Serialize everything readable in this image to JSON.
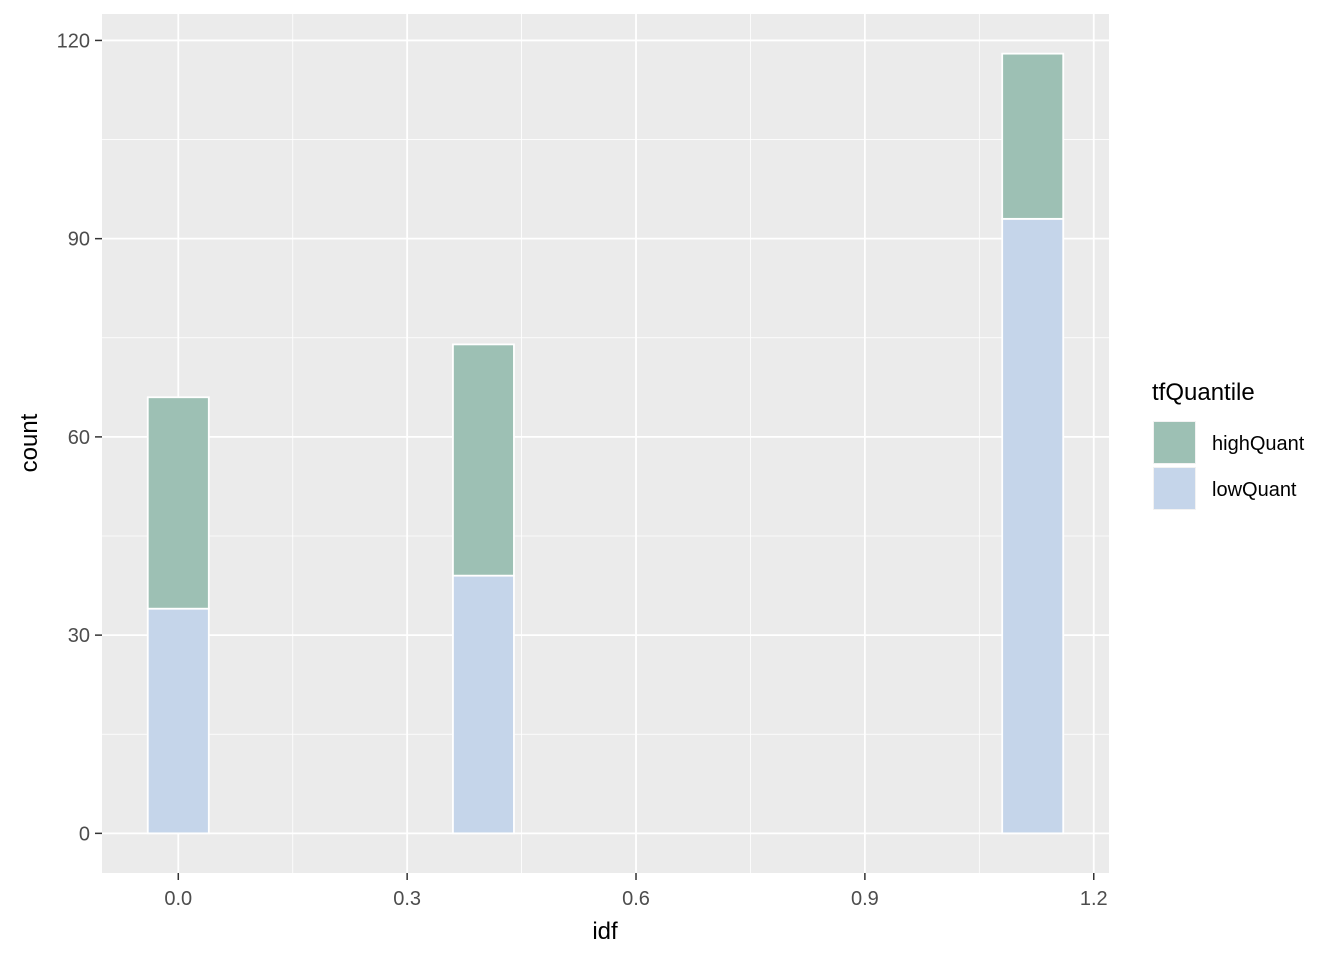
{
  "chart_data": {
    "type": "bar",
    "stacked": true,
    "xlabel": "idf",
    "ylabel": "count",
    "xlim": [
      -0.1,
      1.22
    ],
    "ylim": [
      -6,
      124
    ],
    "xticks": [
      "0.0",
      "0.3",
      "0.6",
      "0.9",
      "1.2"
    ],
    "xtick_values": [
      0.0,
      0.3,
      0.6,
      0.9,
      1.2
    ],
    "yticks": [
      "0",
      "30",
      "60",
      "90",
      "120"
    ],
    "ytick_values": [
      0,
      30,
      60,
      90,
      120
    ],
    "bar_width": 0.08,
    "x": [
      0.0,
      0.4,
      1.12
    ],
    "series": [
      {
        "name": "lowQuant",
        "color": "#c5d5ea",
        "values": [
          34,
          39,
          93
        ]
      },
      {
        "name": "highQuant",
        "color": "#9dc0b4",
        "values": [
          32,
          35,
          25
        ]
      }
    ],
    "grid": true,
    "panel_background": "#ebebeb",
    "legend": {
      "title": "tfQuantile",
      "position": "right",
      "entries": [
        {
          "label": "highQuant",
          "color": "#9dc0b4"
        },
        {
          "label": "lowQuant",
          "color": "#c5d5ea"
        }
      ]
    }
  }
}
